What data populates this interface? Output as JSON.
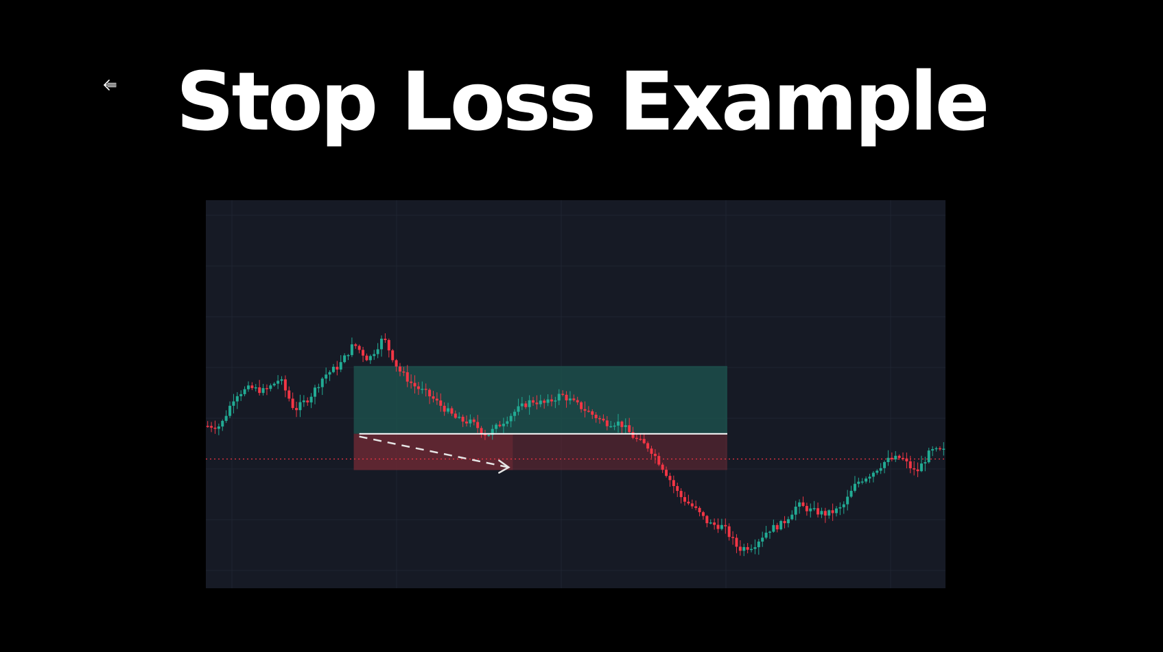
{
  "page": {
    "title": "Stop Loss Example"
  },
  "icons": {
    "back": "arrow-left-icon"
  },
  "colors": {
    "background": "#000000",
    "title": "#ffffff",
    "chart_background": "#161a25",
    "gridline": "#1f2431",
    "up_candle": "#22ab94",
    "down_candle": "#f23645",
    "profit_zone": "#1d5550",
    "loss_zone": "#6e2a34",
    "entry_line": "#ffffff",
    "current_price_line": "#f23645",
    "projection_arrow": "#e6e6e6"
  },
  "chart_data": {
    "type": "candlestick",
    "title": "",
    "xlabel": "",
    "ylabel": "",
    "grid": true,
    "legend": "none",
    "xlim": [
      0,
      200
    ],
    "ylim": [
      0,
      100
    ],
    "price_path": [
      [
        0,
        48
      ],
      [
        4,
        48
      ],
      [
        8,
        58
      ],
      [
        12,
        60
      ],
      [
        16,
        59
      ],
      [
        20,
        63
      ],
      [
        24,
        53
      ],
      [
        28,
        57
      ],
      [
        32,
        64
      ],
      [
        36,
        67
      ],
      [
        40,
        74
      ],
      [
        44,
        69
      ],
      [
        48,
        76
      ],
      [
        52,
        66
      ],
      [
        56,
        61
      ],
      [
        60,
        58
      ],
      [
        64,
        54
      ],
      [
        68,
        50
      ],
      [
        72,
        49
      ],
      [
        76,
        45
      ],
      [
        80,
        49
      ],
      [
        84,
        53
      ],
      [
        88,
        56
      ],
      [
        92,
        55
      ],
      [
        96,
        58
      ],
      [
        100,
        55
      ],
      [
        104,
        52
      ],
      [
        108,
        49
      ],
      [
        112,
        49
      ],
      [
        116,
        44
      ],
      [
        120,
        41
      ],
      [
        124,
        34
      ],
      [
        128,
        26
      ],
      [
        132,
        22
      ],
      [
        136,
        17
      ],
      [
        140,
        16
      ],
      [
        144,
        9
      ],
      [
        148,
        10
      ],
      [
        152,
        15
      ],
      [
        156,
        17
      ],
      [
        160,
        23
      ],
      [
        164,
        21
      ],
      [
        168,
        20
      ],
      [
        172,
        22
      ],
      [
        176,
        30
      ],
      [
        180,
        33
      ],
      [
        184,
        37
      ],
      [
        188,
        38
      ],
      [
        192,
        33
      ],
      [
        196,
        40
      ],
      [
        200,
        40
      ]
    ],
    "trade": {
      "entry_price": 45.5,
      "take_profit_price": 67,
      "stop_loss_price": 34,
      "start_x": 40,
      "end_x": 141,
      "exit_x": 83
    },
    "current_price": 37.5
  }
}
